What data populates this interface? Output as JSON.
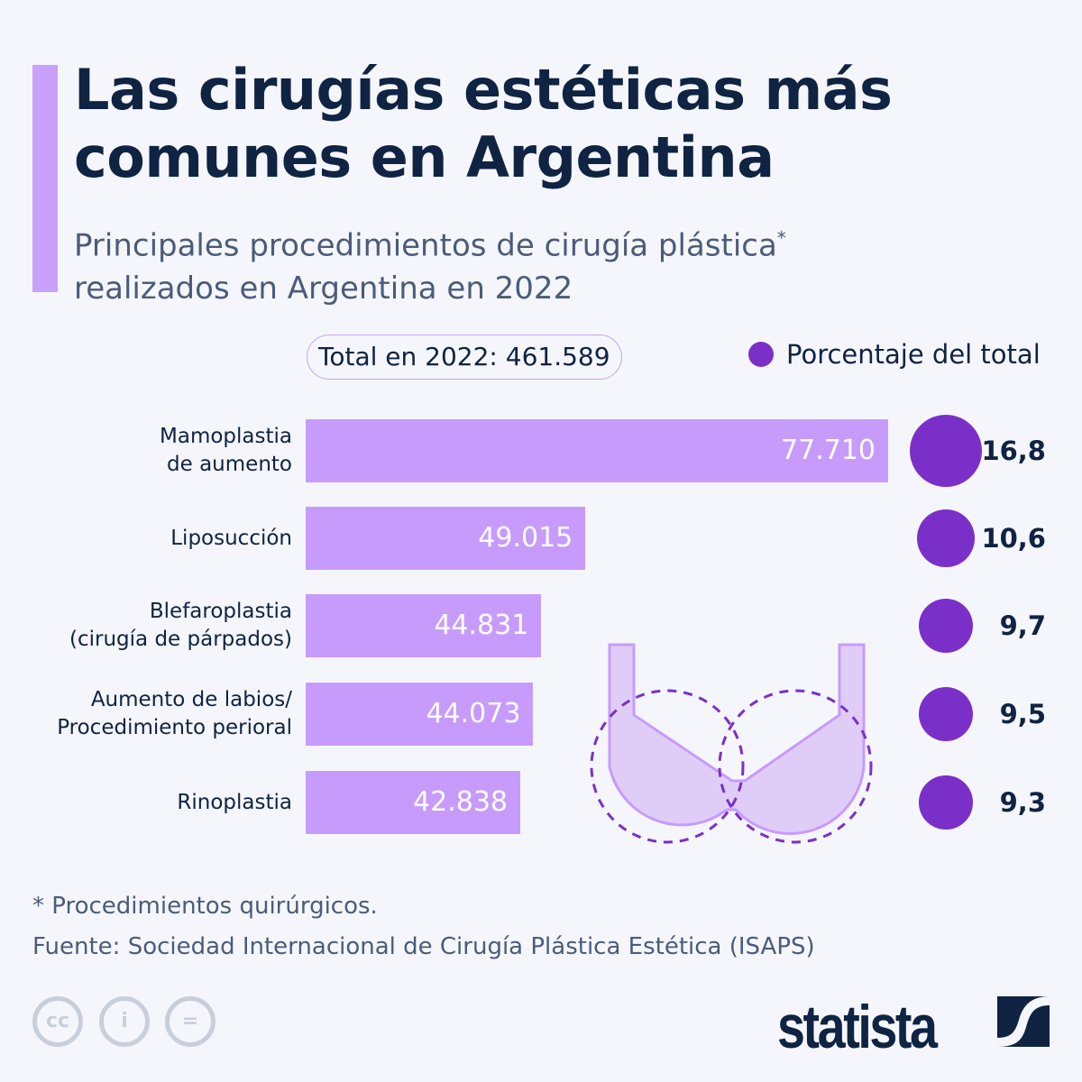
{
  "title": "Las cirugías estéticas más comunes en Argentina",
  "subtitle": "Principales procedimientos de cirugía plástica",
  "subtitle_mark": "*",
  "subtitle_2": "realizados en Argentina en 2022",
  "total_badge": "Total en 2022: 461.589",
  "legend_label": "Porcentaje del total",
  "colors": {
    "bar": "#c79bfc",
    "circle": "#7b2fc9",
    "title": "#0f2342",
    "accent": "#c9a1fb"
  },
  "chart_data": {
    "type": "bar",
    "orientation": "horizontal",
    "categories": [
      "Mamoplastia de aumento",
      "Liposucción",
      "Blefaroplastia (cirugía de párpados)",
      "Aumento de labios/ Procedimiento perioral",
      "Rinoplastia"
    ],
    "category_lines": [
      [
        "Mamoplastia",
        "de aumento"
      ],
      [
        "Liposucción"
      ],
      [
        "Blefaroplastia",
        "(cirugía de párpados)"
      ],
      [
        "Aumento de labios/",
        "Procedimiento perioral"
      ],
      [
        "Rinoplastia"
      ]
    ],
    "values": [
      77710,
      49015,
      44831,
      44073,
      42838
    ],
    "value_labels": [
      "77.710",
      "49.015",
      "44.831",
      "44.073",
      "42.838"
    ],
    "percent_series": {
      "name": "Porcentaje del total",
      "values": [
        16.8,
        10.6,
        9.7,
        9.5,
        9.3
      ],
      "labels": [
        "16,8",
        "10,6",
        "9,7",
        "9,5",
        "9,3"
      ]
    }
  },
  "footnote": "* Procedimientos quirúrgicos.",
  "source": "Fuente: Sociedad Internacional de Cirugía Plástica Estética (ISAPS)",
  "icons": [
    "cc-icon",
    "attribution-icon",
    "no-derivatives-icon",
    "statista-logo"
  ],
  "brand": "statista"
}
